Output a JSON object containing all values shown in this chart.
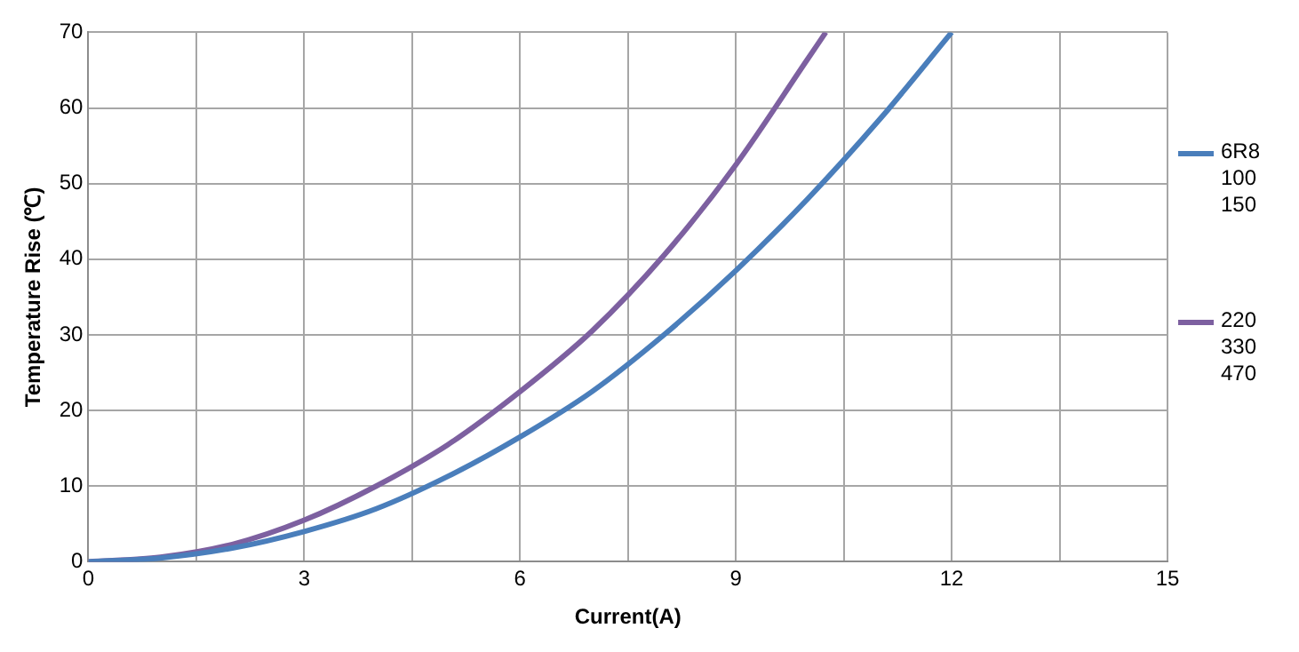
{
  "chart_data": {
    "type": "line",
    "xlabel": "Current(A)",
    "ylabel": "Temperature Rise (℃)",
    "xlim": [
      0,
      15
    ],
    "xticks": [
      0,
      {
        "value": 1.5,
        "label": null
      },
      3,
      {
        "value": 4.5,
        "label": null
      },
      6,
      {
        "value": 7.5,
        "label": null
      },
      9,
      {
        "value": 10.5,
        "label": null
      },
      12,
      {
        "value": 13.5,
        "label": null
      },
      15
    ],
    "ylim": [
      0,
      70
    ],
    "yticks": [
      0,
      10,
      20,
      30,
      40,
      50,
      60,
      70
    ],
    "grid": true,
    "legend": "right",
    "marker": "none",
    "line_style": "solid",
    "series": [
      {
        "name": "6R8\n100\n150",
        "color": "#4a7ebb",
        "x": [
          0,
          1,
          2,
          3,
          4,
          5,
          6,
          7,
          8,
          9,
          10,
          11,
          12
        ],
        "values": [
          0,
          0.5,
          1.8,
          4,
          7,
          11.3,
          16.5,
          22.5,
          30,
          38.5,
          48,
          58.5,
          70
        ]
      },
      {
        "name": "220\n330\n470",
        "color": "#7d60a0",
        "x": [
          0,
          1,
          2,
          3,
          4,
          5,
          6,
          7,
          8,
          9,
          10,
          10.25
        ],
        "values": [
          0,
          0.6,
          2.3,
          5.5,
          10,
          15.5,
          22.5,
          30.5,
          40.5,
          52.5,
          66.5,
          70
        ]
      }
    ]
  }
}
